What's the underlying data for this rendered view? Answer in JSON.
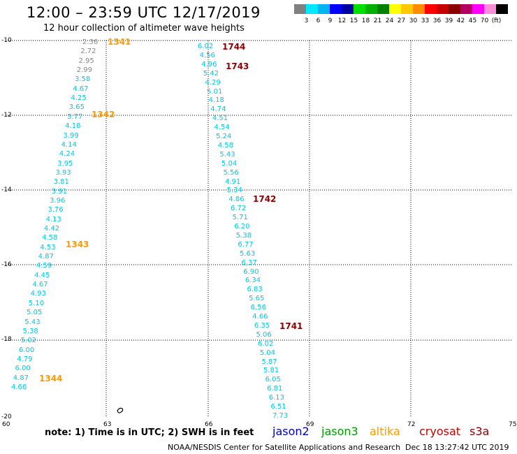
{
  "header": {
    "title": "12:00 – 23:59 UTC 12/17/2019",
    "subtitle": "12 hour collection of altimeter wave heights"
  },
  "scale": {
    "colors": [
      "#808080",
      "#00e8ff",
      "#00b4f0",
      "#0000ff",
      "#0000a0",
      "#00e000",
      "#00b000",
      "#008000",
      "#ffff00",
      "#ffc800",
      "#ff8c00",
      "#ff0000",
      "#c80000",
      "#8b0000",
      "#b40060",
      "#ff00ff",
      "#ff8cd8",
      "#000000"
    ],
    "labels": [
      "3",
      "6",
      "9",
      "12",
      "15",
      "18",
      "21",
      "24",
      "27",
      "30",
      "33",
      "36",
      "39",
      "42",
      "45",
      "70",
      "(ft)"
    ]
  },
  "axes": {
    "y_labels": [
      "-10",
      "-12",
      "-14",
      "-16",
      "-18",
      "-20"
    ],
    "x_labels": [
      "60",
      "63",
      "66",
      "69",
      "72",
      "75"
    ]
  },
  "passes": [
    {
      "name": "1341",
      "color": "#ff9900"
    },
    {
      "name": "1342",
      "color": "#ff9900"
    },
    {
      "name": "1343",
      "color": "#ff9900"
    },
    {
      "name": "1344",
      "color": "#ff9900"
    },
    {
      "name": "1744",
      "color": "#8b0000"
    },
    {
      "name": "1743",
      "color": "#8b0000"
    },
    {
      "name": "1742",
      "color": "#8b0000"
    },
    {
      "name": "1741",
      "color": "#8b0000"
    }
  ],
  "track1_values": [
    "2.36",
    "2.72",
    "2.95",
    "2.99",
    "3.58",
    "4.67",
    "4.25",
    "3.65",
    "3.77",
    "4.18",
    "3.99",
    "4.14",
    "4.24",
    "3.95",
    "3.93",
    "3.81",
    "3.91",
    "3.96",
    "3.76",
    "4.13",
    "4.42",
    "4.58",
    "4.53",
    "4.87",
    "4.59",
    "4.45",
    "4.67",
    "4.93",
    "5.10",
    "5.05",
    "5.43",
    "5.38",
    "5.02",
    "6.00",
    "4.79",
    "6.00",
    "4.87",
    "4.66"
  ],
  "track2_values": [
    "6.02",
    "4.56",
    "4.96",
    "5.42",
    "4.29",
    "5.01",
    "4.18",
    "4.74",
    "4.51",
    "4.54",
    "5.24",
    "4.58",
    "5.43",
    "5.04",
    "5.56",
    "4.91",
    "5.34",
    "4.86",
    "6.72",
    "5.71",
    "6.20",
    "5.38",
    "6.77",
    "5.63",
    "6.37",
    "6.90",
    "6.34",
    "6.83",
    "5.65",
    "6.56",
    "4.66",
    "6.35",
    "5.06",
    "6.02",
    "5.04",
    "5.87",
    "5.81",
    "6.05",
    "6.81",
    "6.13",
    "6.51",
    "7.73"
  ],
  "footer": {
    "note": "note: 1) Time is in UTC; 2) SWH is in feet",
    "missions": [
      {
        "name": "jason2",
        "color": "#0000c8"
      },
      {
        "name": "jason3",
        "color": "#00a000"
      },
      {
        "name": "altika",
        "color": "#ff9900"
      },
      {
        "name": "cryosat",
        "color": "#c80000"
      },
      {
        "name": "s3a",
        "color": "#8b0000"
      }
    ],
    "credit": "NOAA/NESDIS Center for Satellite Applications and Research",
    "timestamp": "Dec 18 13:27:42 UTC 2019"
  }
}
